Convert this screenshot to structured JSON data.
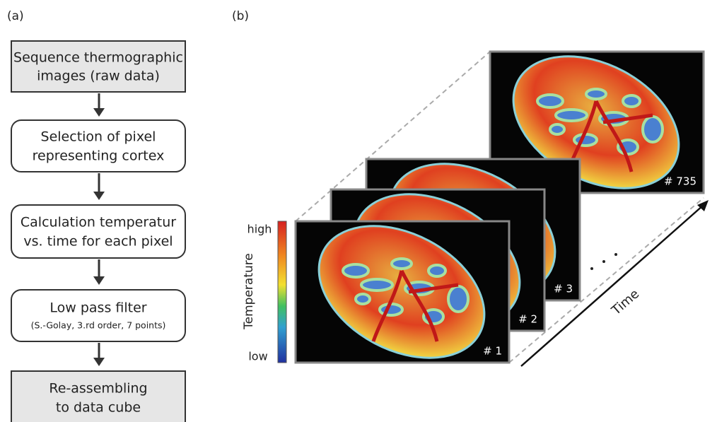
{
  "panel_a": {
    "label": "(a)",
    "nodes": [
      {
        "lines": [
          "Sequence thermographic",
          "images (raw data)"
        ]
      },
      {
        "lines": [
          "Selection of pixel",
          "representing cortex"
        ]
      },
      {
        "lines": [
          "Calculation temperatur",
          "vs. time for each pixel"
        ]
      },
      {
        "lines": [
          "Low pass filter",
          "(S.-Golay, 3.rd order, 7 points)"
        ]
      },
      {
        "lines": [
          "Re-assembling",
          "to data cube"
        ]
      }
    ]
  },
  "panel_b": {
    "label": "(b)",
    "colorbar": {
      "title": "Temperature",
      "high": "high",
      "low": "low"
    },
    "frames": [
      "# 1",
      "# 2",
      "# 3",
      "# 735"
    ],
    "axis_label": "Time"
  }
}
